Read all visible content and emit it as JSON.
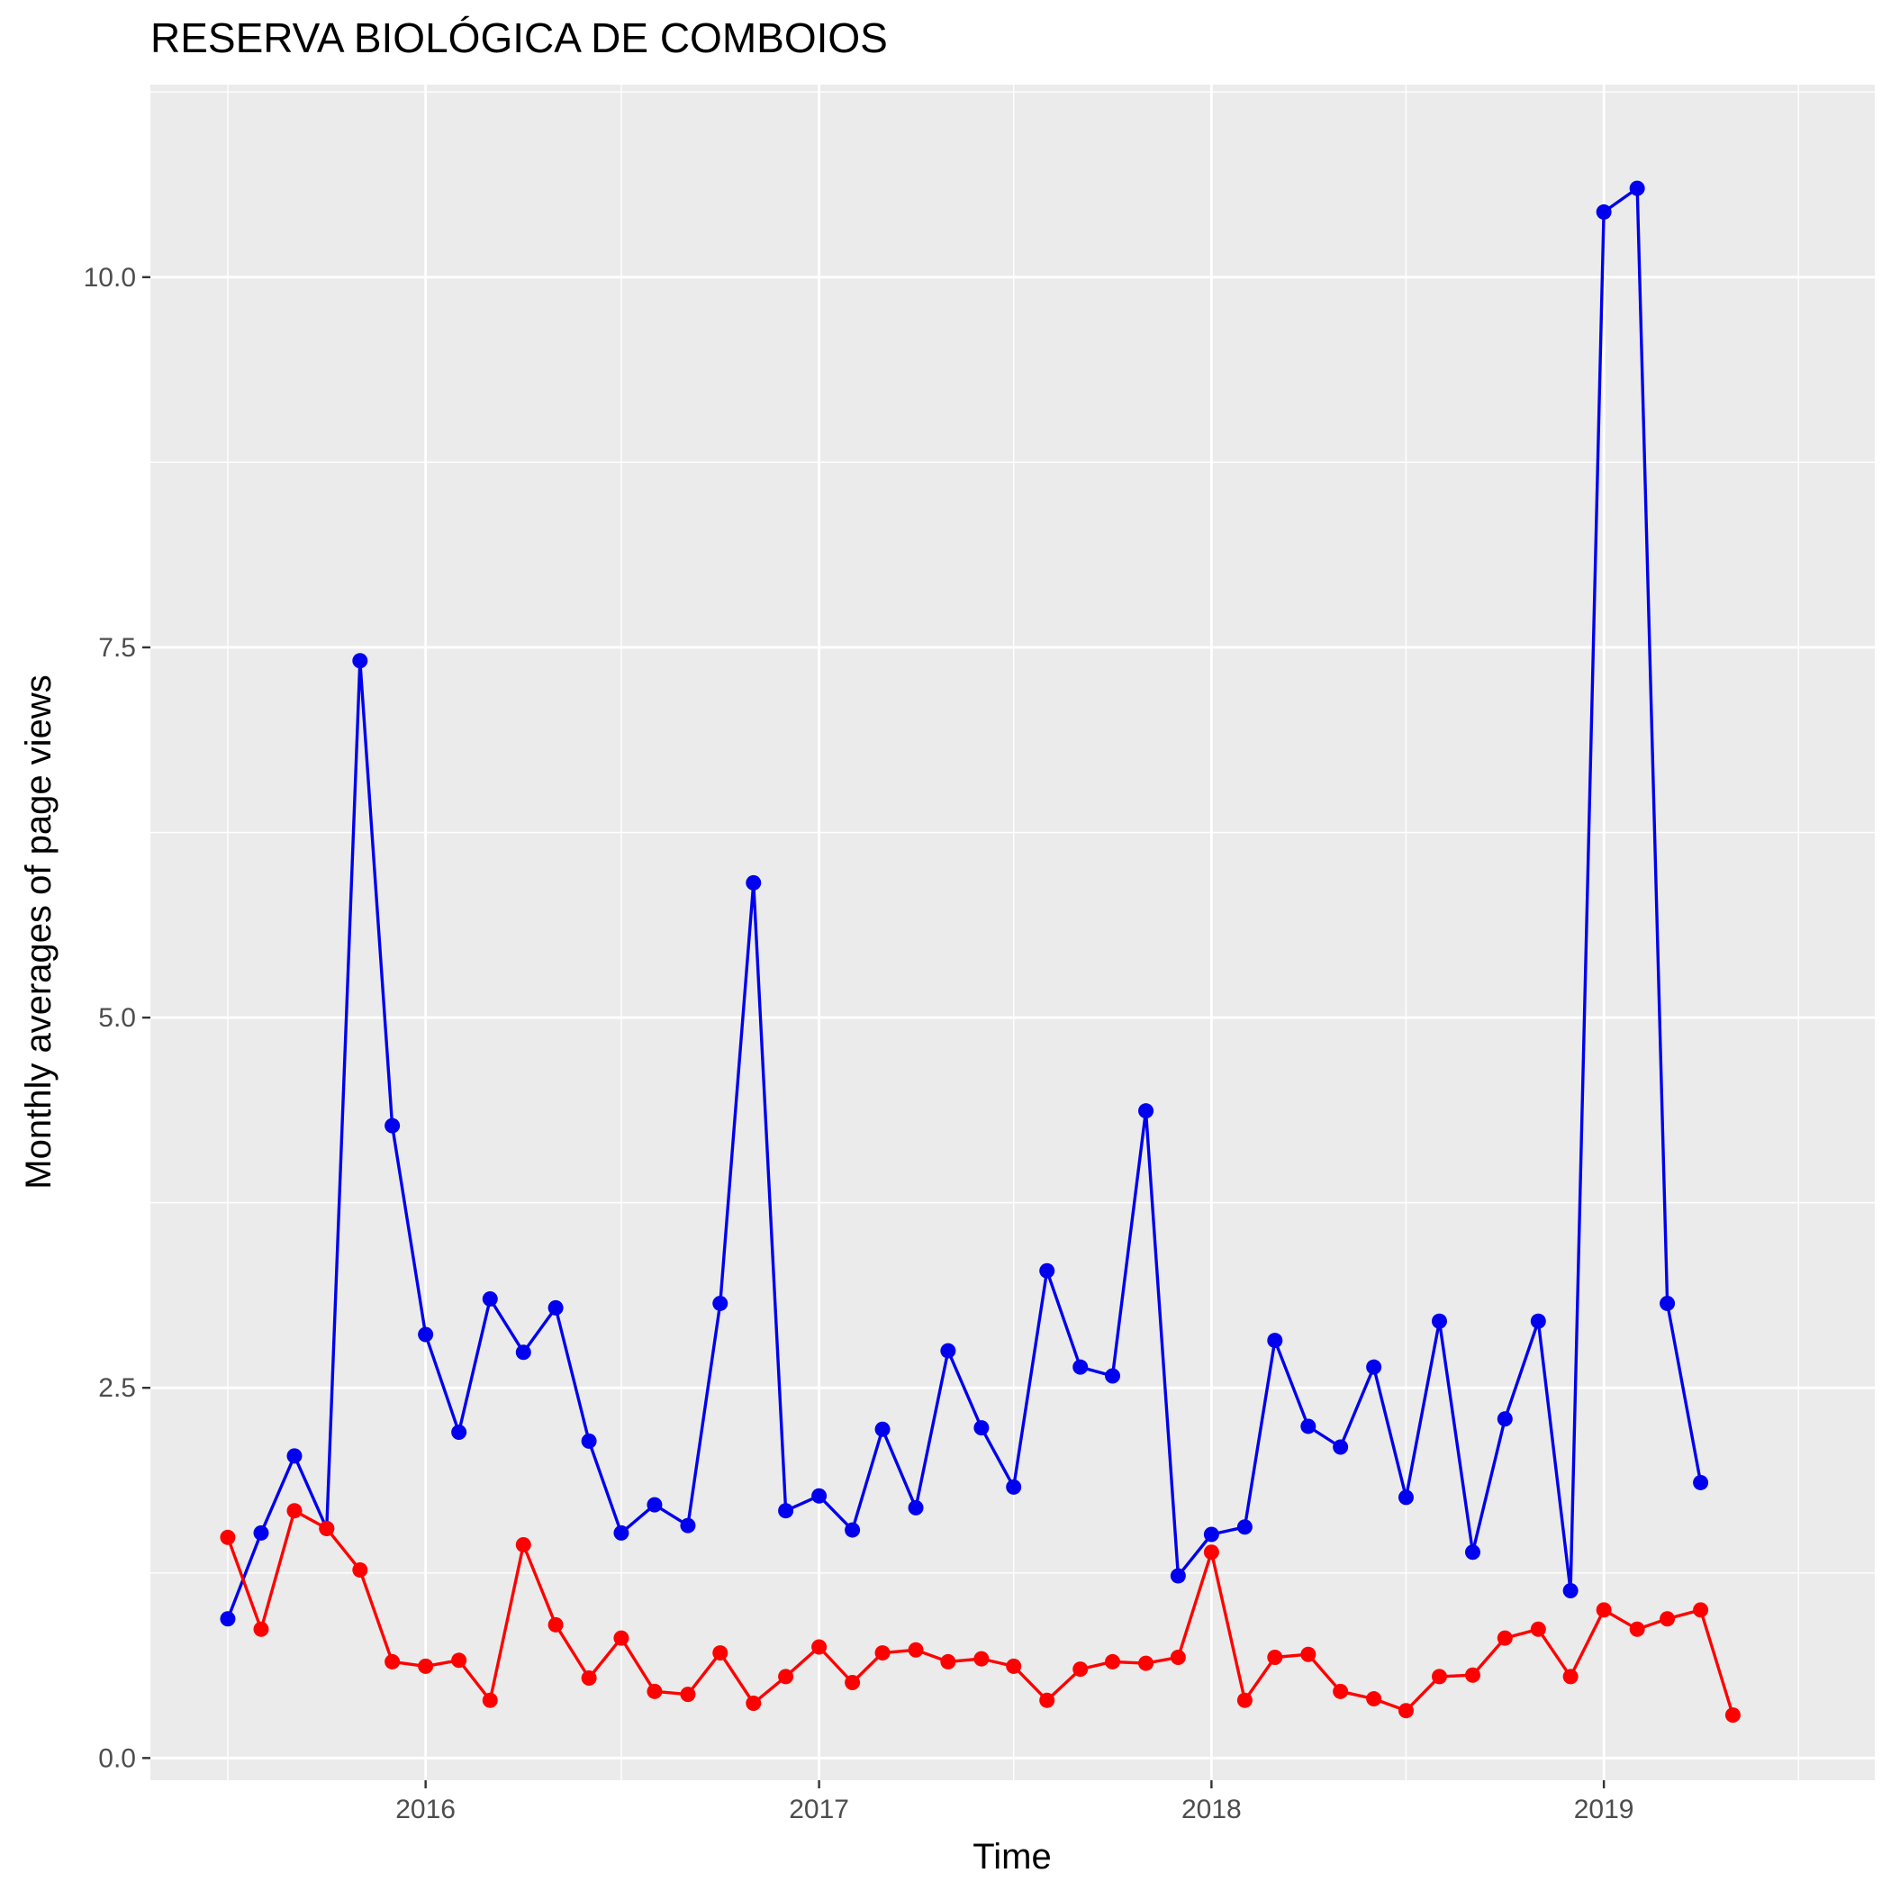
{
  "chart_data": {
    "type": "line",
    "title": "RESERVA BIOLÓGICA DE COMBOIOS",
    "xlabel": "Time",
    "ylabel": "Monthly averages of page views",
    "x_ticks": [
      "2016",
      "2017",
      "2018",
      "2019"
    ],
    "y_ticks": [
      "0.0",
      "2.5",
      "5.0",
      "7.5",
      "10.0"
    ],
    "xlim": [
      "2015-04-20",
      "2019-09-10"
    ],
    "ylim": [
      -0.15,
      11.3
    ],
    "grid": true,
    "legend": "none",
    "series": [
      {
        "color": "#0000ee",
        "points": [
          [
            "2015-07-01",
            0.94
          ],
          [
            "2015-08-01",
            1.52
          ],
          [
            "2015-09-01",
            2.04
          ],
          [
            "2015-10-01",
            1.55
          ],
          [
            "2015-11-01",
            7.41
          ],
          [
            "2015-12-01",
            4.27
          ],
          [
            "2016-01-01",
            2.86
          ],
          [
            "2016-02-01",
            2.2
          ],
          [
            "2016-03-01",
            3.1
          ],
          [
            "2016-04-01",
            2.74
          ],
          [
            "2016-05-01",
            3.04
          ],
          [
            "2016-06-01",
            2.14
          ],
          [
            "2016-07-01",
            1.52
          ],
          [
            "2016-08-01",
            1.71
          ],
          [
            "2016-09-01",
            1.57
          ],
          [
            "2016-10-01",
            3.07
          ],
          [
            "2016-11-01",
            5.91
          ],
          [
            "2016-12-01",
            1.67
          ],
          [
            "2017-01-01",
            1.77
          ],
          [
            "2017-02-01",
            1.54
          ],
          [
            "2017-03-01",
            2.22
          ],
          [
            "2017-04-01",
            1.69
          ],
          [
            "2017-05-01",
            2.75
          ],
          [
            "2017-06-01",
            2.23
          ],
          [
            "2017-07-01",
            1.83
          ],
          [
            "2017-08-01",
            3.29
          ],
          [
            "2017-09-01",
            2.64
          ],
          [
            "2017-10-01",
            2.58
          ],
          [
            "2017-11-01",
            4.37
          ],
          [
            "2017-12-01",
            1.23
          ],
          [
            "2018-01-01",
            1.51
          ],
          [
            "2018-02-01",
            1.56
          ],
          [
            "2018-03-01",
            2.82
          ],
          [
            "2018-04-01",
            2.24
          ],
          [
            "2018-05-01",
            2.1
          ],
          [
            "2018-06-01",
            2.64
          ],
          [
            "2018-07-01",
            1.76
          ],
          [
            "2018-08-01",
            2.95
          ],
          [
            "2018-09-01",
            1.39
          ],
          [
            "2018-10-01",
            2.29
          ],
          [
            "2018-11-01",
            2.95
          ],
          [
            "2018-12-01",
            1.13
          ],
          [
            "2019-01-01",
            10.44
          ],
          [
            "2019-02-01",
            10.6
          ],
          [
            "2019-03-01",
            3.07
          ],
          [
            "2019-04-01",
            1.86
          ]
        ]
      },
      {
        "color": "#ff0000",
        "points": [
          [
            "2015-07-01",
            1.49
          ],
          [
            "2015-08-01",
            0.87
          ],
          [
            "2015-09-01",
            1.67
          ],
          [
            "2015-10-01",
            1.55
          ],
          [
            "2015-11-01",
            1.27
          ],
          [
            "2015-12-01",
            0.65
          ],
          [
            "2016-01-01",
            0.62
          ],
          [
            "2016-02-01",
            0.66
          ],
          [
            "2016-03-01",
            0.39
          ],
          [
            "2016-04-01",
            1.44
          ],
          [
            "2016-05-01",
            0.9
          ],
          [
            "2016-06-01",
            0.54
          ],
          [
            "2016-07-01",
            0.81
          ],
          [
            "2016-08-01",
            0.45
          ],
          [
            "2016-09-01",
            0.43
          ],
          [
            "2016-10-01",
            0.71
          ],
          [
            "2016-11-01",
            0.37
          ],
          [
            "2016-12-01",
            0.55
          ],
          [
            "2017-01-01",
            0.75
          ],
          [
            "2017-02-01",
            0.51
          ],
          [
            "2017-03-01",
            0.71
          ],
          [
            "2017-04-01",
            0.73
          ],
          [
            "2017-05-01",
            0.65
          ],
          [
            "2017-06-01",
            0.67
          ],
          [
            "2017-07-01",
            0.62
          ],
          [
            "2017-08-01",
            0.39
          ],
          [
            "2017-09-01",
            0.6
          ],
          [
            "2017-10-01",
            0.65
          ],
          [
            "2017-11-01",
            0.64
          ],
          [
            "2017-12-01",
            0.68
          ],
          [
            "2018-01-01",
            1.39
          ],
          [
            "2018-02-01",
            0.39
          ],
          [
            "2018-03-01",
            0.68
          ],
          [
            "2018-04-01",
            0.7
          ],
          [
            "2018-05-01",
            0.45
          ],
          [
            "2018-06-01",
            0.4
          ],
          [
            "2018-07-01",
            0.32
          ],
          [
            "2018-08-01",
            0.55
          ],
          [
            "2018-09-01",
            0.56
          ],
          [
            "2018-10-01",
            0.81
          ],
          [
            "2018-11-01",
            0.87
          ],
          [
            "2018-12-01",
            0.55
          ],
          [
            "2019-01-01",
            1.0
          ],
          [
            "2019-02-01",
            0.87
          ],
          [
            "2019-03-01",
            0.94
          ],
          [
            "2019-04-01",
            1.0
          ],
          [
            "2019-05-01",
            0.29
          ]
        ]
      }
    ]
  }
}
